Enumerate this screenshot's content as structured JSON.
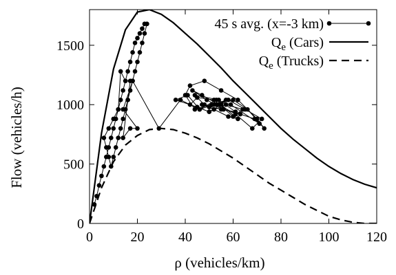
{
  "chart_data": {
    "type": "line",
    "xlabel": "ρ (vehicles/km)",
    "ylabel": "Flow (vehicles/h)",
    "xlim": [
      0,
      120
    ],
    "ylim": [
      0,
      1800
    ],
    "xticks": [
      "0",
      "20",
      "40",
      "60",
      "80",
      "100",
      "120"
    ],
    "yticks": [
      "0",
      "500",
      "1000",
      "1500"
    ],
    "grid": false,
    "legend_position": "top-right",
    "series": [
      {
        "name": "45 s avg. (x=-3 km)",
        "style": "line-points",
        "color": "#000000",
        "x": [
          2,
          3,
          4,
          5,
          6,
          7,
          8,
          9,
          10,
          11,
          12,
          13,
          14,
          15,
          16,
          17,
          18,
          19,
          20,
          21,
          22,
          23,
          24,
          23,
          22,
          21,
          20,
          19,
          18,
          17,
          16,
          15,
          14,
          13,
          12,
          11,
          10,
          9,
          8,
          7,
          6,
          8,
          10,
          12,
          13,
          15,
          17,
          16,
          14,
          17,
          20,
          14,
          18,
          29,
          38,
          46,
          52,
          60,
          66,
          73,
          70,
          62,
          55,
          48,
          42,
          40,
          44,
          51,
          58,
          65,
          72,
          68,
          61,
          54,
          47,
          43,
          49,
          56,
          63,
          69,
          71,
          59,
          53,
          46,
          41,
          36,
          45,
          50,
          57,
          64,
          60,
          52,
          45,
          42,
          50,
          55,
          62,
          58,
          48,
          44,
          54,
          61,
          55,
          47,
          52,
          57,
          50,
          53
        ],
        "y": [
          160,
          230,
          320,
          400,
          480,
          560,
          640,
          720,
          800,
          880,
          960,
          1040,
          1120,
          1200,
          1280,
          1360,
          1440,
          1520,
          1560,
          1600,
          1640,
          1680,
          1680,
          1600,
          1520,
          1440,
          1360,
          1280,
          1200,
          1120,
          1040,
          960,
          880,
          800,
          720,
          640,
          560,
          480,
          560,
          640,
          720,
          800,
          880,
          960,
          1280,
          1200,
          1200,
          1040,
          720,
          800,
          800,
          960,
          1200,
          800,
          1040,
          960,
          1000,
          1040,
          960,
          800,
          880,
          1040,
          1120,
          1200,
          1160,
          1080,
          960,
          1000,
          1040,
          960,
          880,
          800,
          920,
          1000,
          1080,
          1120,
          1040,
          960,
          920,
          880,
          840,
          1000,
          1040,
          960,
          1080,
          1040,
          980,
          940,
          1000,
          960,
          900,
          1040,
          1060,
          1000,
          940,
          1000,
          880,
          900,
          1000,
          1080,
          1040,
          940,
          960,
          1000,
          960,
          1040,
          980,
          1000
        ]
      },
      {
        "name": "Q<sub>e</sub> (Cars)",
        "name_text": "Qe (Cars)",
        "style": "solid",
        "color": "#000000",
        "x": [
          0,
          5,
          10,
          15,
          20,
          25,
          30,
          35,
          40,
          45,
          50,
          55,
          60,
          65,
          70,
          75,
          80,
          85,
          90,
          95,
          100,
          105,
          110,
          115,
          120
        ],
        "y": [
          0,
          760,
          1300,
          1630,
          1780,
          1800,
          1760,
          1690,
          1600,
          1510,
          1410,
          1310,
          1200,
          1100,
          1000,
          900,
          800,
          710,
          630,
          550,
          480,
          420,
          370,
          330,
          300
        ]
      },
      {
        "name": "Q<sub>e</sub> (Trucks)",
        "name_text": "Qe (Trucks)",
        "style": "dashed",
        "color": "#000000",
        "x": [
          0,
          5,
          10,
          15,
          20,
          25,
          30,
          35,
          40,
          45,
          50,
          55,
          60,
          65,
          70,
          75,
          80,
          85,
          90,
          95,
          100,
          105,
          110,
          115,
          120
        ],
        "y": [
          0,
          300,
          520,
          660,
          740,
          790,
          800,
          790,
          760,
          720,
          670,
          610,
          550,
          480,
          410,
          340,
          280,
          220,
          160,
          110,
          60,
          30,
          10,
          0,
          0
        ]
      }
    ]
  }
}
